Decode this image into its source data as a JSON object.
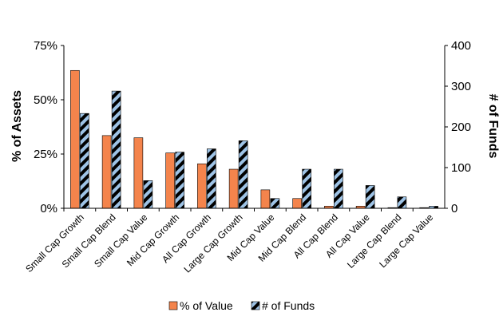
{
  "chart_data": {
    "type": "bar",
    "categories": [
      "Small Cap Growth",
      "Small Cap Blend",
      "Small Cap Value",
      "Mid Cap Growth",
      "All Cap Growth",
      "Large Cap Growth",
      "Mid Cap Value",
      "Mid Cap Blend",
      "All Cap Blend",
      "All Cap Value",
      "Large Cap Blend",
      "Large Cap Value"
    ],
    "series": [
      {
        "name": "% of Value",
        "axis": "left",
        "unit": "%",
        "color": "#f4844c",
        "values": [
          63.5,
          33.5,
          32.5,
          25.5,
          20.5,
          18,
          8.5,
          4.5,
          1,
          1,
          0.3,
          0.3
        ]
      },
      {
        "name": "# of Funds",
        "axis": "right",
        "color": "#9ec3e6",
        "pattern": "diagonal-black-stripes",
        "values": [
          233,
          288,
          68,
          138,
          146,
          166,
          24,
          96,
          96,
          56,
          28,
          5
        ]
      }
    ],
    "y_left": {
      "label": "% of Assets",
      "ticks": [
        "0%",
        "25%",
        "50%",
        "75%"
      ],
      "tick_values": [
        0,
        25,
        50,
        75
      ],
      "lim": [
        0,
        75
      ]
    },
    "y_right": {
      "label": "# of Funds",
      "ticks": [
        "0",
        "100",
        "200",
        "300",
        "400"
      ],
      "tick_values": [
        0,
        100,
        200,
        300,
        400
      ],
      "lim": [
        0,
        400
      ]
    },
    "legend": {
      "placement": "bottom"
    },
    "grid": false
  }
}
